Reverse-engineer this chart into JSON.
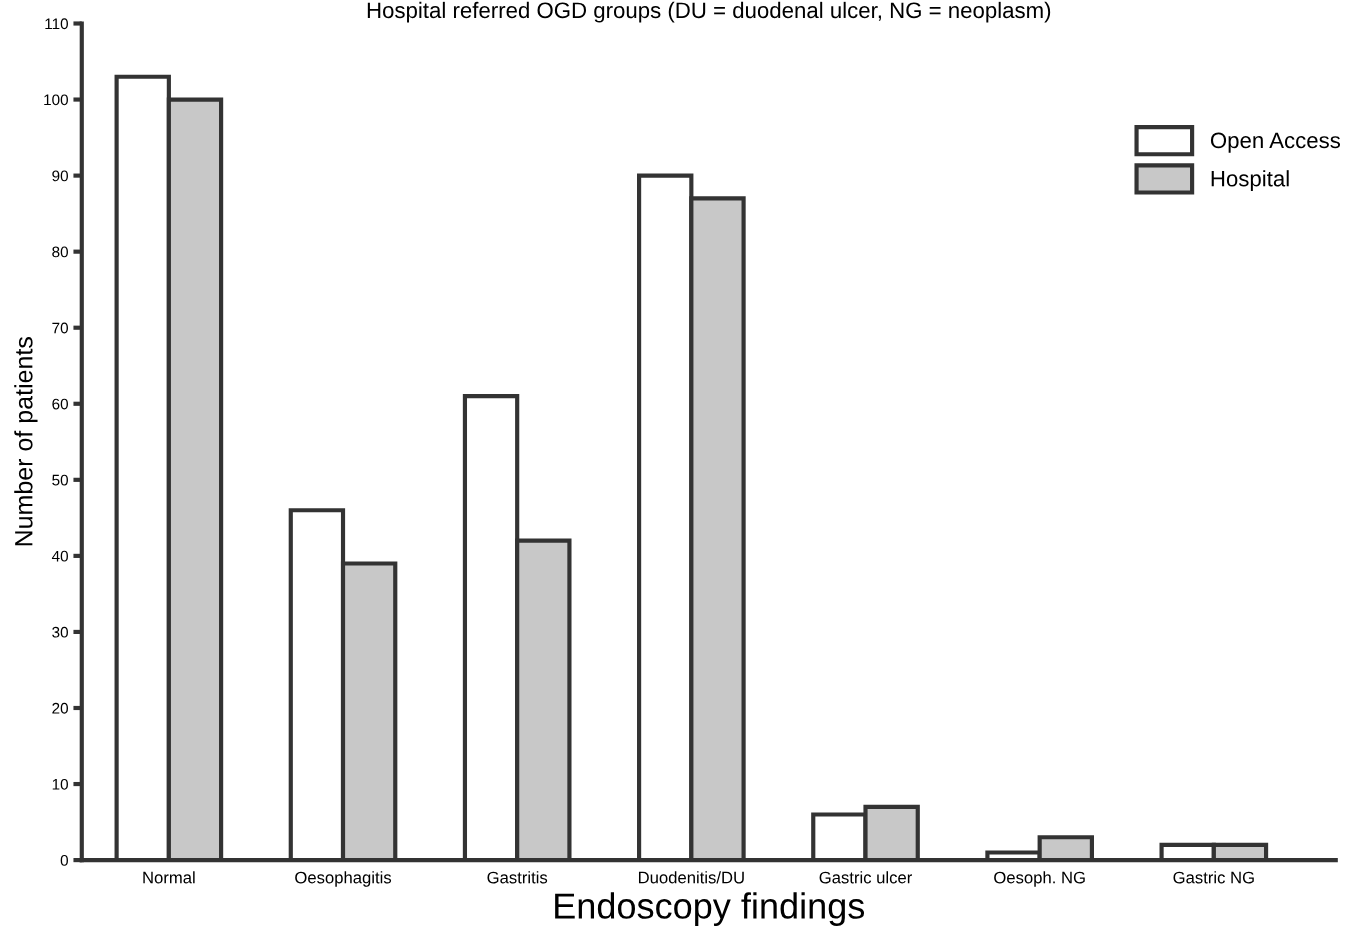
{
  "chart_data": {
    "type": "bar",
    "title": "Hospital referred OGD groups (DU = duodenal ulcer, NG = neoplasm)",
    "xlabel": "Endoscopy findings",
    "ylabel": "Number of patients",
    "categories": [
      "Normal",
      "Oesophagitis",
      "Gastritis",
      "Duodenitis/DU",
      "Gastric ulcer",
      "Oesoph. NG",
      "Gastric NG"
    ],
    "series": [
      {
        "name": "Open Access",
        "color": "#ffffff",
        "values": [
          103,
          46,
          61,
          90,
          6,
          1,
          2
        ]
      },
      {
        "name": "Hospital",
        "color": "#c8c8c8",
        "values": [
          100,
          39,
          42,
          87,
          7,
          3,
          2
        ]
      }
    ],
    "ylim": [
      0,
      110
    ],
    "yticks": [
      0,
      10,
      20,
      30,
      40,
      50,
      60,
      70,
      80,
      90,
      100,
      110
    ],
    "grid": false,
    "legend": "top right"
  }
}
